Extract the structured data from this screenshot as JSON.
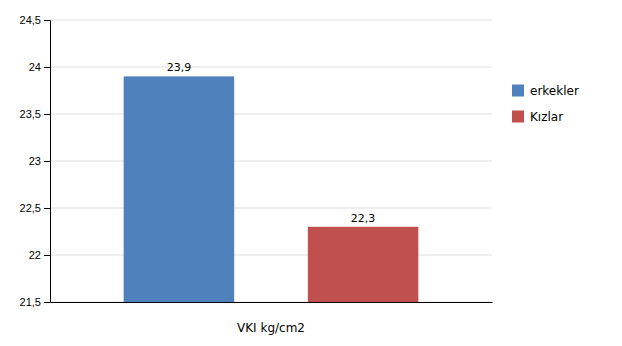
{
  "chart_data": {
    "type": "bar",
    "categories": [
      "erkekler",
      "Kızlar"
    ],
    "values": [
      23.9,
      22.3
    ],
    "value_labels": [
      "23,9",
      "22,3"
    ],
    "colors": [
      "#4f81bd",
      "#c0504d"
    ],
    "xlabel": "VKI kg/cm2",
    "ylim": [
      21.5,
      24.5
    ],
    "yticks": [
      {
        "value": 21.5,
        "label": "21,5"
      },
      22,
      {
        "value": 22.5,
        "label": "22,5"
      },
      23,
      {
        "value": 23.5,
        "label": "23,5"
      },
      24,
      {
        "value": 24.5,
        "label": "24,5"
      }
    ],
    "grid": true,
    "legend": "right",
    "data_labels": true,
    "tick_labels": "y"
  }
}
